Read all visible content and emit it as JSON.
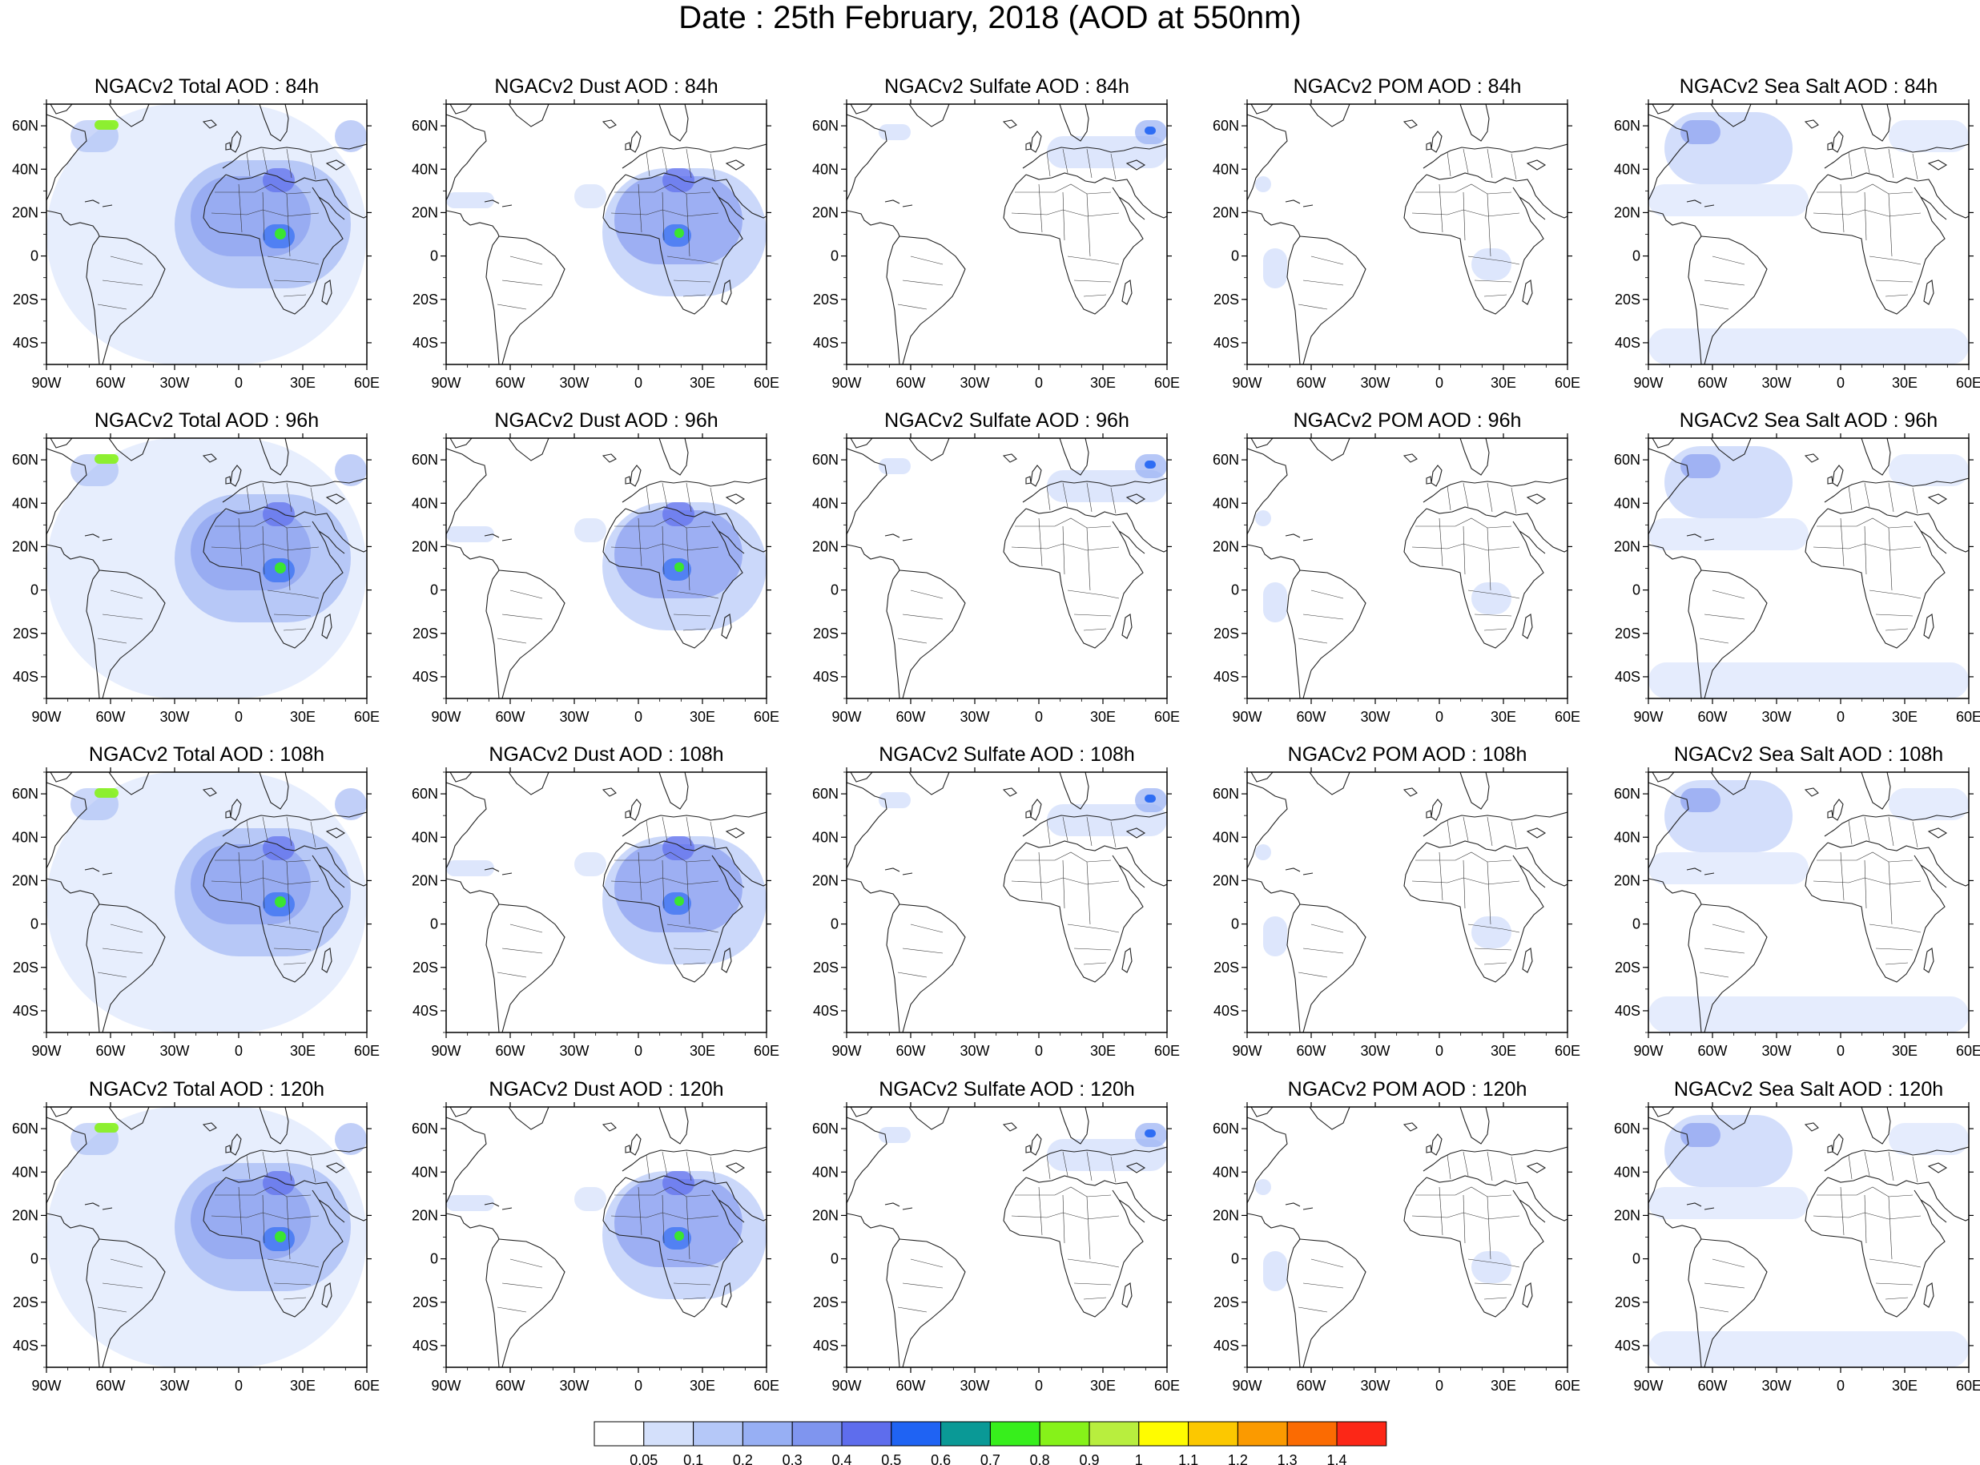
{
  "title": "Date : 25th February, 2018 (AOD at 550nm)",
  "panel_titles": [
    [
      "NGACv2 Total AOD : 84h",
      "NGACv2 Dust AOD : 84h",
      "NGACv2 Sulfate AOD : 84h",
      "NGACv2 POM AOD : 84h",
      "NGACv2 Sea Salt AOD : 84h"
    ],
    [
      "NGACv2 Total AOD : 96h",
      "NGACv2 Dust AOD : 96h",
      "NGACv2 Sulfate AOD : 96h",
      "NGACv2 POM AOD : 96h",
      "NGACv2 Sea Salt AOD : 96h"
    ],
    [
      "NGACv2 Total AOD : 108h",
      "NGACv2 Dust AOD : 108h",
      "NGACv2 Sulfate AOD : 108h",
      "NGACv2 POM AOD : 108h",
      "NGACv2 Sea Salt AOD : 108h"
    ],
    [
      "NGACv2 Total AOD : 120h",
      "NGACv2 Dust AOD : 120h",
      "NGACv2 Sulfate AOD : 120h",
      "NGACv2 POM AOD : 120h",
      "NGACv2 Sea Salt  AOD : 120h"
    ]
  ],
  "map_extent": {
    "lon": [
      -90,
      60
    ],
    "lat": [
      -50,
      70
    ]
  },
  "lon_ticks": [
    {
      "value": -90,
      "label": "90W"
    },
    {
      "value": -60,
      "label": "60W"
    },
    {
      "value": -30,
      "label": "30W"
    },
    {
      "value": 0,
      "label": "0"
    },
    {
      "value": 30,
      "label": "30E"
    },
    {
      "value": 60,
      "label": "60E"
    }
  ],
  "lat_ticks": [
    {
      "value": 60,
      "label": "60N"
    },
    {
      "value": 40,
      "label": "40N"
    },
    {
      "value": 20,
      "label": "20N"
    },
    {
      "value": 0,
      "label": "0"
    },
    {
      "value": -20,
      "label": "20S"
    },
    {
      "value": -40,
      "label": "40S"
    }
  ],
  "colorbar": {
    "labels": [
      "0.05",
      "0.1",
      "0.2",
      "0.3",
      "0.4",
      "0.5",
      "0.6",
      "0.7",
      "0.8",
      "0.9",
      "1",
      "1.1",
      "1.2",
      "1.3",
      "1.4"
    ],
    "colors": [
      "#ffffff",
      "#d4e0fb",
      "#b5c8f8",
      "#97aff4",
      "#7f95ef",
      "#5e6ded",
      "#1f63f3",
      "#0a9996",
      "#37ef1c",
      "#86f219",
      "#b8ee3e",
      "#fffc00",
      "#fcc800",
      "#fb9a00",
      "#fb6b02",
      "#fc2717"
    ]
  }
}
